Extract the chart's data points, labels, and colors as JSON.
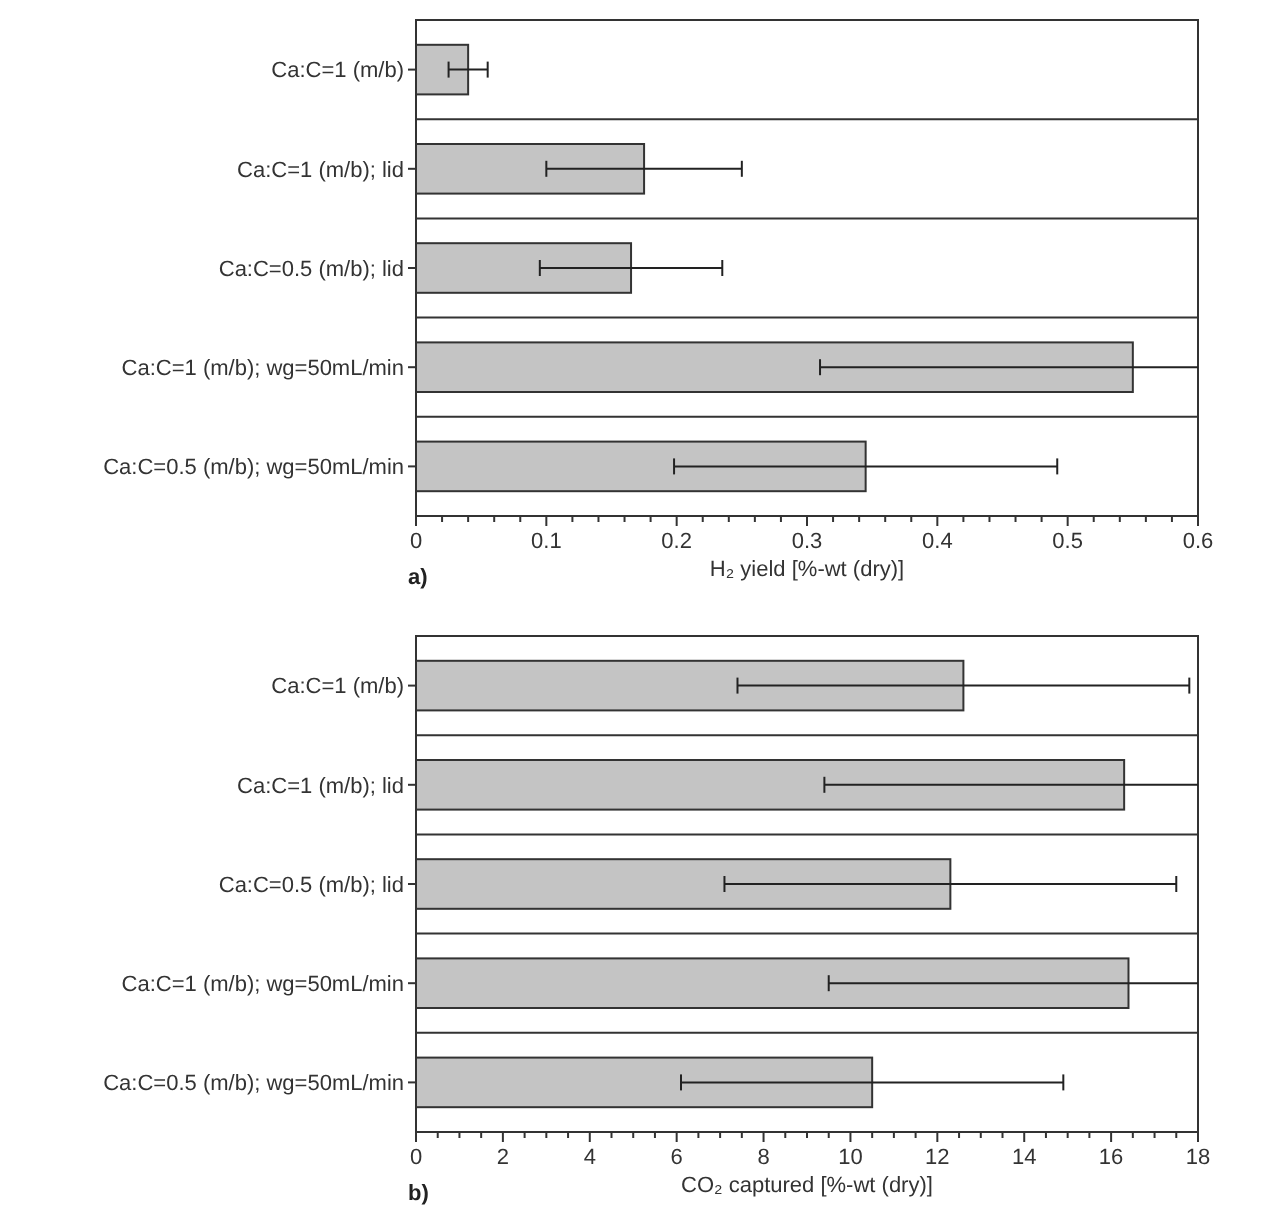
{
  "chart_data": [
    {
      "type": "bar",
      "orientation": "horizontal",
      "xlabel": "H₂ yield [%-wt (dry)]",
      "annotations": [
        "a)"
      ],
      "categories": [
        "Ca:C=1 (m/b)",
        "Ca:C=1 (m/b); lid",
        "Ca:C=0.5 (m/b); lid",
        "Ca:C=1 (m/b); wg=50mL/min",
        "Ca:C=0.5 (m/b); wg=50mL/min"
      ],
      "values": [
        0.04,
        0.175,
        0.165,
        0.55,
        0.345
      ],
      "errors": [
        0.015,
        0.075,
        0.07,
        [
          0.31,
          0.6
        ],
        0.147
      ],
      "color": "#c4c4c4",
      "xlim": [
        0,
        0.6
      ],
      "xticks": [
        0,
        {
          "value": 0.02,
          "label": null
        },
        {
          "value": 0.04,
          "label": null
        },
        {
          "value": 0.06,
          "label": null
        },
        {
          "value": 0.08,
          "label": null
        },
        0.1,
        {
          "value": 0.12,
          "label": null
        },
        {
          "value": 0.14,
          "label": null
        },
        {
          "value": 0.16,
          "label": null
        },
        {
          "value": 0.18,
          "label": null
        },
        0.2,
        {
          "value": 0.22,
          "label": null
        },
        {
          "value": 0.24,
          "label": null
        },
        {
          "value": 0.26,
          "label": null
        },
        {
          "value": 0.28,
          "label": null
        },
        0.3,
        {
          "value": 0.32,
          "label": null
        },
        {
          "value": 0.34,
          "label": null
        },
        {
          "value": 0.36,
          "label": null
        },
        {
          "value": 0.38,
          "label": null
        },
        0.4,
        {
          "value": 0.42,
          "label": null
        },
        {
          "value": 0.44,
          "label": null
        },
        {
          "value": 0.46,
          "label": null
        },
        {
          "value": 0.48,
          "label": null
        },
        0.5,
        {
          "value": 0.52,
          "label": null
        },
        {
          "value": 0.54,
          "label": null
        },
        {
          "value": 0.56,
          "label": null
        },
        {
          "value": 0.58,
          "label": null
        },
        0.6
      ],
      "grid": "y"
    },
    {
      "type": "bar",
      "orientation": "horizontal",
      "xlabel": "CO₂ captured [%-wt (dry)]",
      "annotations": [
        "b)"
      ],
      "categories": [
        "Ca:C=1 (m/b)",
        "Ca:C=1 (m/b); lid",
        "Ca:C=0.5 (m/b); lid",
        "Ca:C=1 (m/b); wg=50mL/min",
        "Ca:C=0.5 (m/b); wg=50mL/min"
      ],
      "values": [
        12.6,
        16.3,
        12.3,
        16.4,
        10.5
      ],
      "errors": [
        5.2,
        [
          9.4,
          18
        ],
        5.2,
        [
          9.5,
          18
        ],
        4.4
      ],
      "color": "#c4c4c4",
      "xlim": [
        0,
        18
      ],
      "xticks": [
        0,
        {
          "value": 0.5,
          "label": null
        },
        {
          "value": 1,
          "label": null
        },
        {
          "value": 1.5,
          "label": null
        },
        2,
        {
          "value": 2.5,
          "label": null
        },
        {
          "value": 3,
          "label": null
        },
        {
          "value": 3.5,
          "label": null
        },
        4,
        {
          "value": 4.5,
          "label": null
        },
        {
          "value": 5,
          "label": null
        },
        {
          "value": 5.5,
          "label": null
        },
        6,
        {
          "value": 6.5,
          "label": null
        },
        {
          "value": 7,
          "label": null
        },
        {
          "value": 7.5,
          "label": null
        },
        8,
        {
          "value": 8.5,
          "label": null
        },
        {
          "value": 9,
          "label": null
        },
        {
          "value": 9.5,
          "label": null
        },
        10,
        {
          "value": 10.5,
          "label": null
        },
        {
          "value": 11,
          "label": null
        },
        {
          "value": 11.5,
          "label": null
        },
        12,
        {
          "value": 12.5,
          "label": null
        },
        {
          "value": 13,
          "label": null
        },
        {
          "value": 13.5,
          "label": null
        },
        14,
        {
          "value": 14.5,
          "label": null
        },
        {
          "value": 15,
          "label": null
        },
        {
          "value": 15.5,
          "label": null
        },
        16,
        {
          "value": 16.5,
          "label": null
        },
        {
          "value": 17,
          "label": null
        },
        {
          "value": 17.5,
          "label": null
        },
        18
      ],
      "grid": "y"
    }
  ]
}
